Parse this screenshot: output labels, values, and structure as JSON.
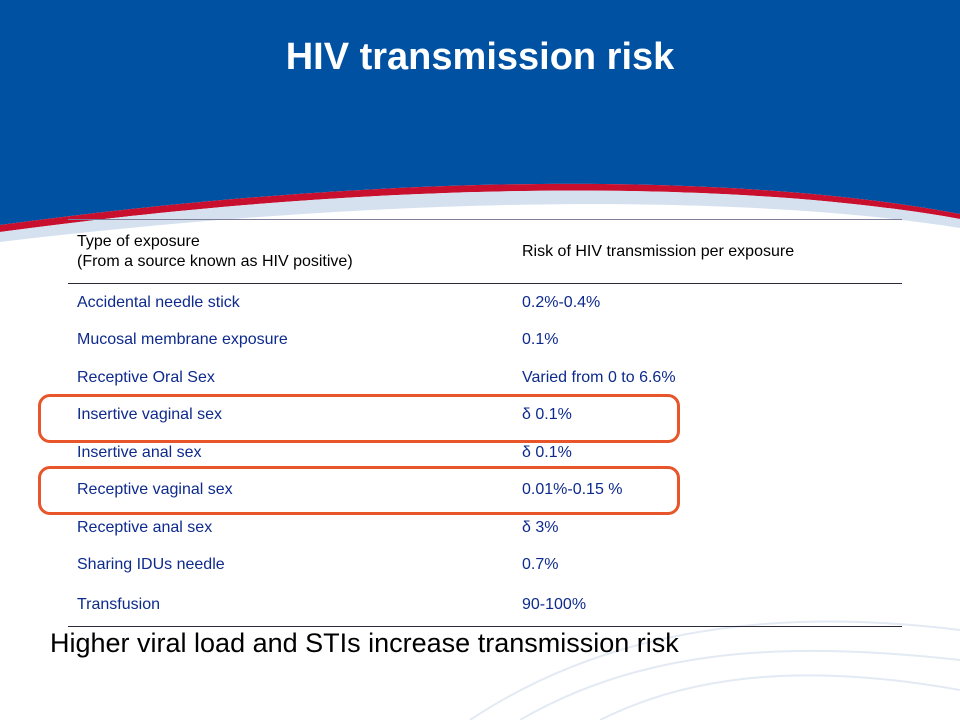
{
  "slide": {
    "title": "HIV transmission risk",
    "colors": {
      "header_blue": "#0051A2",
      "swoosh_red": "#C8102E",
      "text_blue": "#0D2A8C",
      "highlight": "#E8552A"
    }
  },
  "table": {
    "header": {
      "col1_line1": "Type of exposure",
      "col1_line2": "(From a source known as HIV positive)",
      "col2": "Risk of HIV transmission per exposure"
    },
    "rows": [
      {
        "exposure": "Accidental needle stick",
        "risk": "0.2%-0.4%"
      },
      {
        "exposure": "Mucosal membrane exposure",
        "risk": "0.1%"
      },
      {
        "exposure": "Receptive Oral Sex",
        "risk": "Varied from 0 to 6.6%"
      },
      {
        "exposure": "Insertive vaginal sex",
        "risk": "δ  0.1%",
        "highlighted": true
      },
      {
        "exposure": "Insertive anal sex",
        "risk": "δ  0.1%"
      },
      {
        "exposure": "Receptive vaginal sex",
        "risk": "0.01%-0.15 %",
        "highlighted": true
      },
      {
        "exposure": "Receptive anal sex",
        "risk": "δ  3%"
      },
      {
        "exposure": "Sharing IDUs needle",
        "risk": "0.7%"
      },
      {
        "exposure": "Transfusion",
        "risk": "90-100%"
      }
    ]
  },
  "footer": "Higher viral load and STIs increase transmission risk"
}
